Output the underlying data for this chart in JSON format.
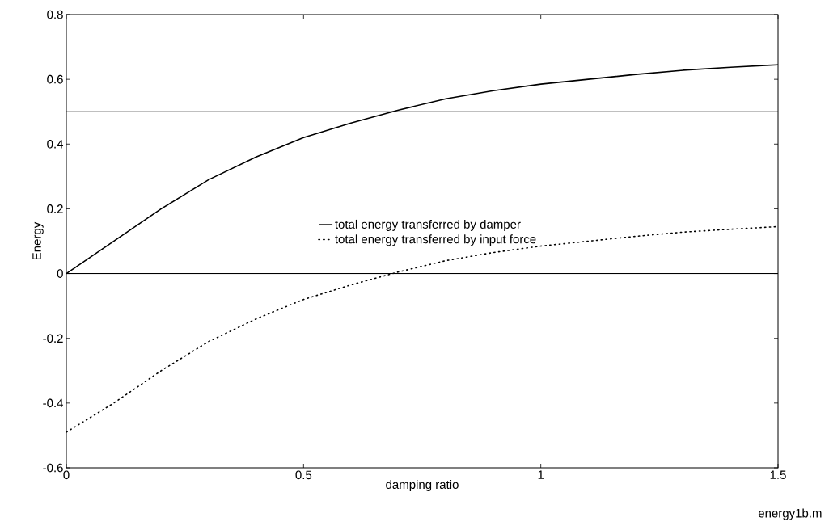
{
  "chart_data": {
    "type": "line",
    "xlabel": "damping ratio",
    "ylabel": "Energy",
    "x": [
      0,
      0.1,
      0.2,
      0.3,
      0.4,
      0.5,
      0.6,
      0.7,
      0.8,
      0.9,
      1.0,
      1.1,
      1.2,
      1.3,
      1.4,
      1.5
    ],
    "series": [
      {
        "name": "total energy transferred by damper",
        "color": "#000000",
        "line_style": "solid",
        "values": [
          0,
          0.1,
          0.2,
          0.29,
          0.36,
          0.42,
          0.465,
          0.505,
          0.54,
          0.565,
          0.585,
          0.6,
          0.615,
          0.628,
          0.637,
          0.645
        ]
      },
      {
        "name": "total energy transferred by input force",
        "color": "#000000",
        "line_style": "dotted",
        "values": [
          -0.49,
          -0.4,
          -0.3,
          -0.21,
          -0.14,
          -0.08,
          -0.035,
          0.005,
          0.04,
          0.065,
          0.085,
          0.1,
          0.115,
          0.128,
          0.137,
          0.145
        ]
      }
    ],
    "xlim": [
      0,
      1.5
    ],
    "ylim": [
      -0.6,
      0.8
    ],
    "xticks": [
      0,
      0.5,
      1,
      1.5
    ],
    "yticks": [
      -0.6,
      -0.4,
      -0.2,
      0,
      0.2,
      0.4,
      0.6,
      0.8
    ],
    "ref_lines": [
      {
        "axis": "y",
        "value": 0.5,
        "color": "#000000"
      },
      {
        "axis": "y",
        "value": 0,
        "color": "#000000"
      }
    ],
    "legend": "center",
    "annotations": [
      "energy1b.m"
    ]
  }
}
